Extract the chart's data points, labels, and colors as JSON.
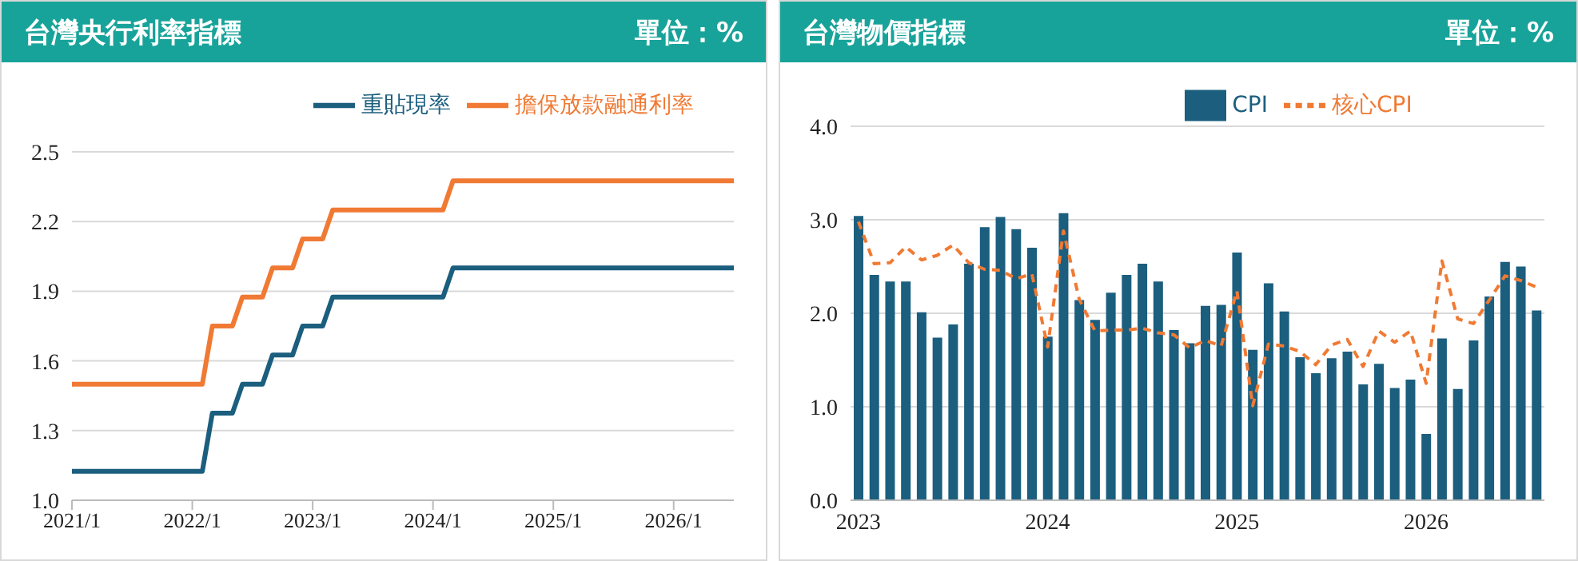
{
  "chart_data": [
    {
      "type": "line",
      "title": "台灣央行利率指標",
      "subtitle": "單位：%",
      "x": [
        "2021-01",
        "2022-02",
        "2022-03",
        "2022-05",
        "2022-06",
        "2022-08",
        "2022-09",
        "2022-11",
        "2022-12",
        "2023-02",
        "2023-03",
        "2024-02",
        "2024-03",
        "2026-07"
      ],
      "series": [
        {
          "name": "重貼現率",
          "color": "#1b5e7e",
          "values": [
            1.125,
            1.125,
            1.375,
            1.375,
            1.5,
            1.5,
            1.625,
            1.625,
            1.75,
            1.75,
            1.875,
            1.875,
            2.0,
            2.0
          ]
        },
        {
          "name": "擔保放款融通利率",
          "color": "#f07a34",
          "values": [
            1.5,
            1.5,
            1.75,
            1.75,
            1.875,
            1.875,
            2.0,
            2.0,
            2.125,
            2.125,
            2.25,
            2.25,
            2.375,
            2.375
          ]
        }
      ],
      "xlim": [
        "2021-01",
        "2026-07"
      ],
      "xticks": [
        {
          "value": "2021-01",
          "label": "2021/1"
        },
        {
          "value": "2022-01",
          "label": "2022/1"
        },
        {
          "value": "2023-01",
          "label": "2023/1"
        },
        {
          "value": "2024-01",
          "label": "2024/1"
        },
        {
          "value": "2025-01",
          "label": "2025/1"
        },
        {
          "value": "2026-01",
          "label": "2026/1"
        }
      ],
      "ylim": [
        1.0,
        2.5
      ],
      "yticks": [
        {
          "value": 1,
          "label": "1.0"
        },
        1.3,
        1.6,
        1.9,
        2.2,
        2.5
      ],
      "grid": "y",
      "legend": "top",
      "marker": "none",
      "line_style": "solid"
    },
    {
      "type": "bar",
      "title": "台灣物價指標",
      "subtitle": "單位：%",
      "categories": [
        "2023",
        null,
        null,
        null,
        null,
        null,
        null,
        null,
        null,
        null,
        null,
        null,
        "2024",
        null,
        null,
        null,
        null,
        null,
        null,
        null,
        null,
        null,
        null,
        null,
        "2025",
        null,
        null,
        null,
        null,
        null,
        null,
        null,
        null,
        null,
        null,
        null,
        "2026",
        null,
        null,
        null,
        null,
        null,
        null,
        null
      ],
      "series": [
        {
          "name": "CPI",
          "color": "#1b5e7e",
          "values": [
            3.04,
            2.41,
            2.34,
            2.34,
            2.01,
            1.74,
            1.88,
            2.53,
            2.92,
            3.03,
            2.9,
            2.7,
            1.75,
            3.07,
            2.14,
            1.93,
            2.22,
            2.41,
            2.53,
            2.34,
            1.82,
            1.68,
            2.08,
            2.09,
            2.65,
            1.61,
            2.32,
            2.02,
            1.53,
            1.36,
            1.52,
            1.59,
            1.24,
            1.46,
            1.2,
            1.29,
            0.71,
            1.73,
            1.19,
            1.71,
            2.18,
            2.55,
            2.5,
            2.03
          ]
        },
        {
          "name": "核心CPI",
          "type": "line",
          "color": "#f07a34",
          "line_style": "dashed",
          "marker": "none",
          "values": [
            2.98,
            2.53,
            2.54,
            2.71,
            2.57,
            2.62,
            2.73,
            2.54,
            2.47,
            2.46,
            2.37,
            2.42,
            1.64,
            2.88,
            2.15,
            1.81,
            1.82,
            1.82,
            1.84,
            1.79,
            1.77,
            1.63,
            1.71,
            1.65,
            2.24,
            1.01,
            1.67,
            1.65,
            1.59,
            1.45,
            1.66,
            1.72,
            1.43,
            1.81,
            1.69,
            1.81,
            1.25,
            2.56,
            1.94,
            1.89,
            2.14,
            2.4,
            2.35,
            2.28
          ]
        }
      ],
      "ylim": [
        0,
        4
      ],
      "yticks": [
        {
          "value": 0,
          "label": "0.0"
        },
        {
          "value": 1,
          "label": "1.0"
        },
        {
          "value": 2,
          "label": "2.0"
        },
        {
          "value": 3,
          "label": "3.0"
        },
        {
          "value": 4,
          "label": "4.0"
        }
      ],
      "grid": "y",
      "legend": "top"
    }
  ]
}
